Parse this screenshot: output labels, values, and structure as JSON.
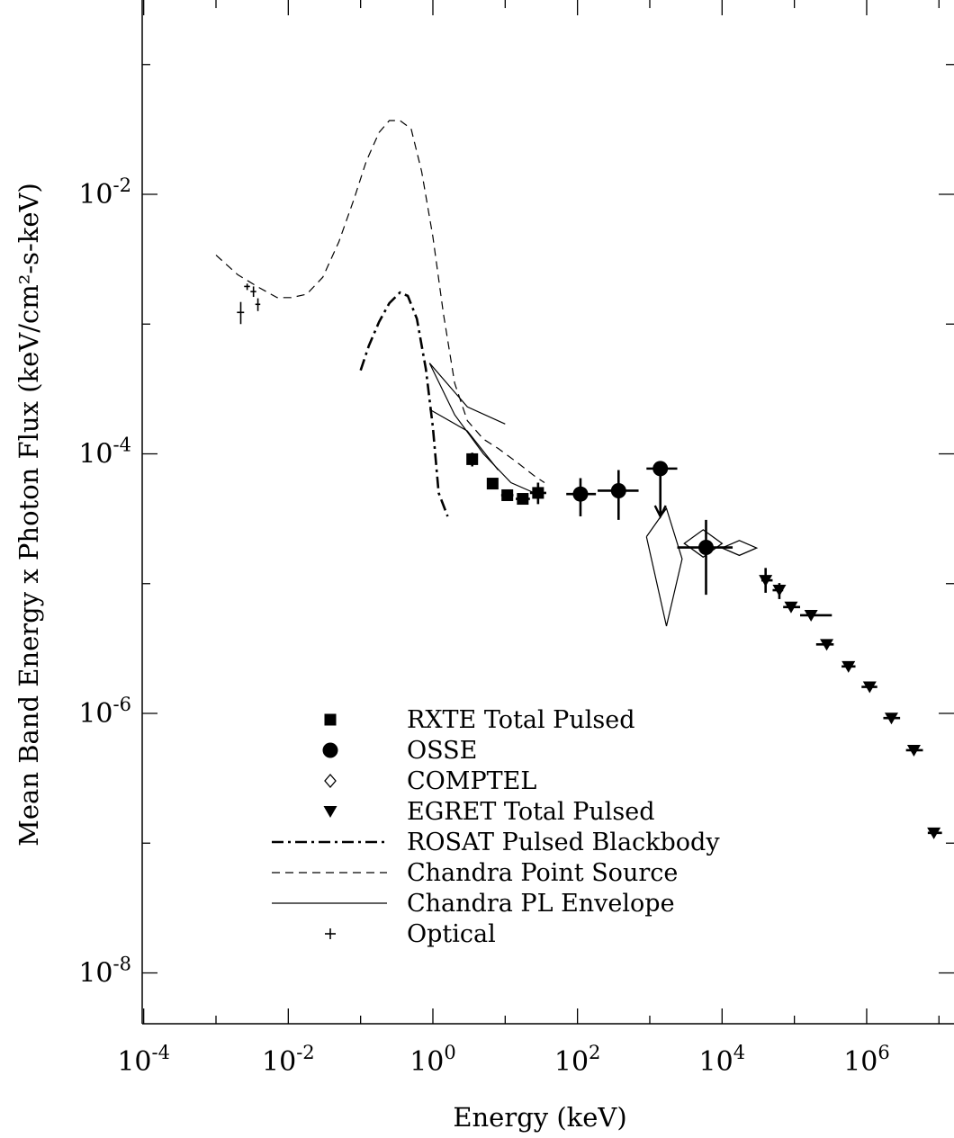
{
  "chart_data": {
    "type": "scatter",
    "xlabel": "Energy (keV)",
    "ylabel": "Mean Band Energy x Photon Flux (keV/cm²-s-keV)",
    "xscale": "log",
    "yscale": "log",
    "xlim": [
      0.0001,
      10000000
    ],
    "ylim": [
      1e-09,
      1
    ],
    "x_ticks": [
      {
        "value": 0.0001,
        "base": "10",
        "exp": "-4"
      },
      {
        "value": 0.01,
        "base": "10",
        "exp": "-2"
      },
      {
        "value": 1,
        "base": "10",
        "exp": "0"
      },
      {
        "value": 100,
        "base": "10",
        "exp": "2"
      },
      {
        "value": 10000,
        "base": "10",
        "exp": "4"
      },
      {
        "value": 1000000,
        "base": "10",
        "exp": "6"
      }
    ],
    "y_ticks": [
      {
        "value": 1e-08,
        "base": "10",
        "exp": "-8"
      },
      {
        "value": 1e-06,
        "base": "10",
        "exp": "-6"
      },
      {
        "value": 0.0001,
        "base": "10",
        "exp": "-4"
      },
      {
        "value": 0.01,
        "base": "10",
        "exp": "-2"
      }
    ],
    "legend_position": "bottom-left",
    "series": [
      {
        "name": "RXTE Total Pulsed",
        "kind": "points",
        "marker": "square",
        "points": [
          {
            "x": 3.5,
            "y": 9.1e-05,
            "xlo": 3.1,
            "xhi": 4.0,
            "ylo": 8e-05,
            "yhi": 0.000102
          },
          {
            "x": 6.7,
            "y": 5.9e-05,
            "xlo": 5.6,
            "xhi": 8.0,
            "ylo": 5.5e-05,
            "yhi": 6.3e-05
          },
          {
            "x": 10.7,
            "y": 4.8e-05,
            "xlo": 8.8,
            "xhi": 13.0,
            "ylo": 4.5e-05,
            "yhi": 5.1e-05
          },
          {
            "x": 17.5,
            "y": 4.5e-05,
            "xlo": 14.0,
            "xhi": 22.0,
            "ylo": 4.2e-05,
            "yhi": 4.8e-05
          },
          {
            "x": 28.5,
            "y": 5e-05,
            "xlo": 22.0,
            "xhi": 37.0,
            "ylo": 4.1e-05,
            "yhi": 6e-05
          }
        ]
      },
      {
        "name": "OSSE",
        "kind": "points",
        "marker": "circle",
        "points": [
          {
            "x": 110,
            "y": 4.9e-05,
            "xlo": 70,
            "xhi": 180,
            "ylo": 3.3e-05,
            "yhi": 6.5e-05
          },
          {
            "x": 370,
            "y": 5.2e-05,
            "xlo": 190,
            "xhi": 700,
            "ylo": 3.1e-05,
            "yhi": 7.5e-05
          },
          {
            "x": 1400,
            "y": 7.7e-05,
            "xlo": 900,
            "xhi": 2400,
            "ylo": 3.4e-05,
            "yhi": 7.7e-05,
            "upper_limit": true
          },
          {
            "x": 6000,
            "y": 1.9e-05,
            "xlo": 2400,
            "xhi": 14000,
            "ylo": 8.2e-06,
            "yhi": 3.1e-05
          }
        ]
      },
      {
        "name": "COMPTEL",
        "kind": "diamonds",
        "boxes": [
          {
            "xlo": 3000,
            "xhi": 10000,
            "ylo": 1.6e-05,
            "yhi": 2.6e-05
          },
          {
            "xlo": 10000,
            "xhi": 30000,
            "ylo": 1.65e-05,
            "yhi": 2.15e-05
          }
        ]
      },
      {
        "name": "EGRET Total Pulsed",
        "kind": "points",
        "marker": "triangle-down",
        "points": [
          {
            "x": 40000,
            "y": 1.06e-05,
            "xlo": 35000,
            "xhi": 50000,
            "ylo": 8.5e-06,
            "yhi": 1.32e-05
          },
          {
            "x": 62000,
            "y": 8.9e-06,
            "xlo": 50000,
            "xhi": 70000,
            "ylo": 7.6e-06,
            "yhi": 1.01e-05
          },
          {
            "x": 90000,
            "y": 6.6e-06,
            "xlo": 70000,
            "xhi": 120000,
            "ylo": 6.6e-06,
            "yhi": 6.6e-06
          },
          {
            "x": 170000,
            "y": 5.7e-06,
            "xlo": 120000,
            "xhi": 330000,
            "ylo": 5.7e-06,
            "yhi": 5.7e-06
          },
          {
            "x": 280000,
            "y": 3.4e-06,
            "xlo": 200000,
            "xhi": 350000,
            "ylo": 3.4e-06,
            "yhi": 3.4e-06
          },
          {
            "x": 560000,
            "y": 2.3e-06,
            "xlo": 450000,
            "xhi": 700000,
            "ylo": 2.3e-06,
            "yhi": 2.3e-06
          },
          {
            "x": 1100000,
            "y": 1.6e-06,
            "xlo": 850000,
            "xhi": 1400000,
            "ylo": 1.6e-06,
            "yhi": 1.6e-06
          },
          {
            "x": 2200000,
            "y": 9.2e-07,
            "xlo": 1700000,
            "xhi": 2900000,
            "ylo": 9.2e-07,
            "yhi": 9.2e-07
          },
          {
            "x": 4500000,
            "y": 5.2e-07,
            "xlo": 3500000,
            "xhi": 6000000,
            "ylo": 5.2e-07,
            "yhi": 5.2e-07
          },
          {
            "x": 8500000,
            "y": 1.2e-07,
            "xlo": 7000000,
            "xhi": 11000000,
            "ylo": 1.2e-07,
            "yhi": 1.2e-07
          }
        ]
      },
      {
        "name": "ROSAT Pulsed Blackbody",
        "kind": "line",
        "dash": "dashdot",
        "x": [
          0.1,
          0.13,
          0.18,
          0.25,
          0.35,
          0.45,
          0.6,
          0.8,
          1.0,
          1.2,
          1.6
        ],
        "y": [
          0.00044,
          0.00068,
          0.00104,
          0.00145,
          0.00175,
          0.00165,
          0.0011,
          0.00045,
          0.00016,
          5e-05,
          3.3e-05
        ]
      },
      {
        "name": "Chandra Point Source",
        "kind": "line",
        "dash": "dashed",
        "x": [
          0.001,
          0.002,
          0.004,
          0.007,
          0.011,
          0.018,
          0.03,
          0.05,
          0.08,
          0.12,
          0.18,
          0.25,
          0.35,
          0.5,
          0.7,
          1.0,
          1.4,
          2.0,
          3.0,
          5.0,
          8.0,
          15.0,
          25.0,
          35.0
        ],
        "y": [
          0.0034,
          0.0024,
          0.0019,
          0.0016,
          0.0016,
          0.0017,
          0.0023,
          0.0043,
          0.009,
          0.018,
          0.03,
          0.037,
          0.037,
          0.032,
          0.015,
          0.0047,
          0.0012,
          0.00035,
          0.00018,
          0.00013,
          0.00011,
          8.5e-05,
          6.8e-05,
          6e-05
        ]
      },
      {
        "name": "Chandra PL Envelope",
        "kind": "line",
        "dash": "solid",
        "segments": [
          {
            "x": [
              0.9,
              3.0,
              10.0
            ],
            "y": [
              0.0005,
              0.00023,
              0.00017
            ]
          },
          {
            "x": [
              0.9,
              3.0,
              8.0
            ],
            "y": [
              0.00022,
              0.00015,
              7.5e-05
            ]
          },
          {
            "x": [
              0.9,
              2.0,
              5.0,
              12.0,
              30.0
            ],
            "y": [
              0.0005,
              0.0002,
              0.0001,
              6e-05,
              4.8e-05
            ]
          },
          {
            "x": [
              900,
              1700,
              2800,
              1700,
              900
            ],
            "y": [
              2.3e-05,
              3.8e-05,
              1.55e-05,
              4.7e-06,
              2.3e-05
            ]
          }
        ]
      },
      {
        "name": "Optical",
        "kind": "points",
        "marker": "plus",
        "points": [
          {
            "x": 0.0022,
            "y": 0.00123,
            "xlo": 0.00195,
            "xhi": 0.00245,
            "ylo": 0.001,
            "yhi": 0.00148
          },
          {
            "x": 0.0027,
            "y": 0.00195,
            "xlo": 0.00245,
            "xhi": 0.00295,
            "ylo": 0.00183,
            "yhi": 0.00205
          },
          {
            "x": 0.0033,
            "y": 0.00178,
            "xlo": 0.003,
            "xhi": 0.0036,
            "ylo": 0.00162,
            "yhi": 0.00195
          },
          {
            "x": 0.0038,
            "y": 0.00142,
            "xlo": 0.0035,
            "xhi": 0.0041,
            "ylo": 0.00126,
            "yhi": 0.00158
          }
        ]
      }
    ]
  }
}
